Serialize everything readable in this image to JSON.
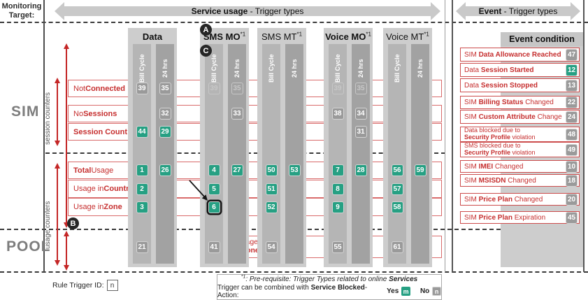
{
  "header": {
    "monitoring_target_line1": "Monitoring",
    "monitoring_target_line2": "Target:",
    "service_usage_bold": "Service usage",
    "service_usage_rest": " - Trigger types",
    "event_bold": "Event",
    "event_rest": " - Trigger types"
  },
  "sections": {
    "sim": "SIM",
    "pool": "POOL",
    "session_counters": "session counters",
    "usage_counters": "usage counters"
  },
  "markers": {
    "a": "A",
    "b": "B",
    "c": "C"
  },
  "colors": {
    "accent_red": "#c62f2f",
    "badge_green": "#26a083",
    "badge_gray": "#9a9a9a"
  },
  "matrix": {
    "columns": [
      {
        "id": "data",
        "label": "Data",
        "bold": true,
        "sup": "",
        "subcolumns": [
          "Bill Cycle",
          "24 hrs"
        ]
      },
      {
        "id": "sms_mo",
        "label": "SMS MO",
        "bold": true,
        "sup": "*1",
        "subcolumns": [
          "Bill Cycle",
          "24 hrs"
        ]
      },
      {
        "id": "sms_mt",
        "label": "SMS MT",
        "bold": false,
        "sup": "*1",
        "subcolumns": [
          "Bill Cycle",
          "24 hrs"
        ]
      },
      {
        "id": "voice_mo",
        "label": "Voice MO",
        "bold": true,
        "sup": "*1",
        "subcolumns": [
          "Bill Cycle",
          "24 hrs"
        ]
      },
      {
        "id": "voice_mt",
        "label": "Voice MT",
        "bold": false,
        "sup": "*1",
        "subcolumns": [
          "Bill Cycle",
          "24 hrs"
        ]
      }
    ],
    "rows": [
      {
        "id": "not_connected",
        "parts": [
          {
            "t": "Not "
          },
          {
            "t": "Connected",
            "b": true
          }
        ]
      },
      {
        "id": "no_sessions",
        "parts": [
          {
            "t": "No "
          },
          {
            "t": "Sessions",
            "b": true
          }
        ]
      },
      {
        "id": "session_count",
        "parts": [
          {
            "t": "Session Count",
            "b": true
          }
        ]
      },
      {
        "id": "total_usage",
        "parts": [
          {
            "t": "Total",
            "b": true
          },
          {
            "t": " Usage"
          }
        ]
      },
      {
        "id": "usage_country",
        "parts": [
          {
            "t": "Usage in "
          },
          {
            "t": "Country",
            "b": true
          }
        ]
      },
      {
        "id": "usage_zone",
        "parts": [
          {
            "t": "Usage in "
          },
          {
            "t": "Zone",
            "b": true
          }
        ]
      },
      {
        "id": "pool",
        "lines": [
          [
            {
              "t": "Pool",
              "b": true
            },
            {
              "t": " Usage"
            }
          ],
          [
            {
              "t": "Home-Zone",
              "b": true
            }
          ]
        ]
      }
    ],
    "badges": [
      {
        "row": "not_connected",
        "col": "data",
        "sub": "bc",
        "value": "39",
        "style": "gray"
      },
      {
        "row": "not_connected",
        "col": "data",
        "sub": "h24",
        "value": "35",
        "style": "gray"
      },
      {
        "row": "not_connected",
        "col": "sms_mo",
        "sub": "bc",
        "value": "39",
        "style": "ghost"
      },
      {
        "row": "not_connected",
        "col": "sms_mo",
        "sub": "h24",
        "value": "35",
        "style": "ghost"
      },
      {
        "row": "not_connected",
        "col": "voice_mo",
        "sub": "bc",
        "value": "39",
        "style": "ghost"
      },
      {
        "row": "not_connected",
        "col": "voice_mo",
        "sub": "h24",
        "value": "35",
        "style": "ghost"
      },
      {
        "row": "no_sessions",
        "col": "data",
        "sub": "h24",
        "value": "32",
        "style": "gray"
      },
      {
        "row": "no_sessions",
        "col": "sms_mo",
        "sub": "h24",
        "value": "33",
        "style": "gray"
      },
      {
        "row": "no_sessions",
        "col": "voice_mo",
        "sub": "bc",
        "value": "38",
        "style": "gray"
      },
      {
        "row": "no_sessions",
        "col": "voice_mo",
        "sub": "h24",
        "value": "34",
        "style": "gray"
      },
      {
        "row": "session_count",
        "col": "data",
        "sub": "bc",
        "value": "44",
        "style": "green"
      },
      {
        "row": "session_count",
        "col": "data",
        "sub": "h24",
        "value": "29",
        "style": "green"
      },
      {
        "row": "session_count",
        "col": "voice_mo",
        "sub": "h24",
        "value": "31",
        "style": "gray"
      },
      {
        "row": "total_usage",
        "col": "data",
        "sub": "bc",
        "value": "1",
        "style": "green"
      },
      {
        "row": "total_usage",
        "col": "data",
        "sub": "h24",
        "value": "26",
        "style": "green"
      },
      {
        "row": "total_usage",
        "col": "sms_mo",
        "sub": "bc",
        "value": "4",
        "style": "green"
      },
      {
        "row": "total_usage",
        "col": "sms_mo",
        "sub": "h24",
        "value": "27",
        "style": "green"
      },
      {
        "row": "total_usage",
        "col": "sms_mt",
        "sub": "bc",
        "value": "50",
        "style": "green"
      },
      {
        "row": "total_usage",
        "col": "sms_mt",
        "sub": "h24",
        "value": "53",
        "style": "green"
      },
      {
        "row": "total_usage",
        "col": "voice_mo",
        "sub": "bc",
        "value": "7",
        "style": "green"
      },
      {
        "row": "total_usage",
        "col": "voice_mo",
        "sub": "h24",
        "value": "28",
        "style": "green"
      },
      {
        "row": "total_usage",
        "col": "voice_mt",
        "sub": "bc",
        "value": "56",
        "style": "green"
      },
      {
        "row": "total_usage",
        "col": "voice_mt",
        "sub": "h24",
        "value": "59",
        "style": "green"
      },
      {
        "row": "usage_country",
        "col": "data",
        "sub": "bc",
        "value": "2",
        "style": "green"
      },
      {
        "row": "usage_country",
        "col": "sms_mo",
        "sub": "bc",
        "value": "5",
        "style": "green"
      },
      {
        "row": "usage_country",
        "col": "sms_mt",
        "sub": "bc",
        "value": "51",
        "style": "green"
      },
      {
        "row": "usage_country",
        "col": "voice_mo",
        "sub": "bc",
        "value": "8",
        "style": "green"
      },
      {
        "row": "usage_country",
        "col": "voice_mt",
        "sub": "bc",
        "value": "57",
        "style": "green"
      },
      {
        "row": "usage_zone",
        "col": "data",
        "sub": "bc",
        "value": "3",
        "style": "green"
      },
      {
        "row": "usage_zone",
        "col": "sms_mo",
        "sub": "bc",
        "value": "6",
        "style": "green",
        "highlight": true
      },
      {
        "row": "usage_zone",
        "col": "sms_mt",
        "sub": "bc",
        "value": "52",
        "style": "green"
      },
      {
        "row": "usage_zone",
        "col": "voice_mo",
        "sub": "bc",
        "value": "9",
        "style": "green"
      },
      {
        "row": "usage_zone",
        "col": "voice_mt",
        "sub": "bc",
        "value": "58",
        "style": "green"
      },
      {
        "row": "pool",
        "col": "data",
        "sub": "bc",
        "value": "21",
        "style": "gray"
      },
      {
        "row": "pool",
        "col": "sms_mo",
        "sub": "bc",
        "value": "41",
        "style": "gray"
      },
      {
        "row": "pool",
        "col": "sms_mt",
        "sub": "bc",
        "value": "54",
        "style": "gray"
      },
      {
        "row": "pool",
        "col": "voice_mo",
        "sub": "bc",
        "value": "55",
        "style": "gray"
      },
      {
        "row": "pool",
        "col": "voice_mt",
        "sub": "bc",
        "value": "61",
        "style": "gray"
      }
    ]
  },
  "events": {
    "title": "Event condition",
    "items": [
      {
        "id": "data-allowance-reached",
        "parts": [
          {
            "t": "SIM "
          },
          {
            "t": "Data Allowance Reached",
            "b": true
          }
        ],
        "value": "47",
        "style": "gray"
      },
      {
        "id": "data-session-started",
        "parts": [
          {
            "t": "Data "
          },
          {
            "t": "Session Started",
            "b": true
          }
        ],
        "value": "12",
        "style": "green"
      },
      {
        "id": "data-session-stopped",
        "parts": [
          {
            "t": "Data "
          },
          {
            "t": "Session Stopped",
            "b": true
          }
        ],
        "value": "13",
        "style": "gray"
      },
      {
        "id": "billing-status-changed",
        "parts": [
          {
            "t": "SIM "
          },
          {
            "t": "Billing Status",
            "b": true
          },
          {
            "t": " Changed"
          }
        ],
        "value": "22",
        "style": "gray"
      },
      {
        "id": "custom-attribute-change",
        "parts": [
          {
            "t": "SIM "
          },
          {
            "t": "Custom Attribute",
            "b": true
          },
          {
            "t": " Change"
          }
        ],
        "value": "24",
        "style": "gray"
      },
      {
        "id": "data-blocked-security",
        "lines": [
          [
            {
              "t": "Data blocked due to"
            }
          ],
          [
            {
              "t": "Security Profile",
              "b": true
            },
            {
              "t": " violation"
            }
          ]
        ],
        "value": "48",
        "style": "gray"
      },
      {
        "id": "sms-blocked-security",
        "lines": [
          [
            {
              "t": "SMS blocked due to"
            }
          ],
          [
            {
              "t": "Security Profile",
              "b": true
            },
            {
              "t": " violation"
            }
          ]
        ],
        "value": "49",
        "style": "gray"
      },
      {
        "id": "imei-changed",
        "parts": [
          {
            "t": "SIM "
          },
          {
            "t": "IMEI",
            "b": true
          },
          {
            "t": " Changed"
          }
        ],
        "value": "10",
        "style": "gray"
      },
      {
        "id": "msisdn-changed",
        "parts": [
          {
            "t": "SIM "
          },
          {
            "t": "MSISDN",
            "b": true
          },
          {
            "t": " Changed"
          }
        ],
        "value": "18",
        "style": "gray"
      },
      {
        "id": "price-plan-changed",
        "parts": [
          {
            "t": "SIM "
          },
          {
            "t": "Price Plan",
            "b": true
          },
          {
            "t": " Changed"
          }
        ],
        "value": "20",
        "style": "gray"
      },
      {
        "id": "price-plan-expiration",
        "parts": [
          {
            "t": "SIM "
          },
          {
            "t": "Price Plan",
            "b": true
          },
          {
            "t": " Expiration"
          }
        ],
        "value": "45",
        "style": "gray"
      }
    ]
  },
  "legend": {
    "rule_trigger_label": "Rule Trigger ID:",
    "rule_trigger_value": "n",
    "note_line1": [
      {
        "t": "*1",
        "i": true,
        "sup": true
      },
      {
        "t": ": Pre-requisite: Trigger Types related to online ",
        "i": true
      },
      {
        "t": "Services",
        "i": true,
        "b": true
      }
    ],
    "note_line2_prefix": [
      {
        "t": "Trigger can be combined with "
      },
      {
        "t": "Service Blocked",
        "b": true
      },
      {
        "t": "-Action: "
      }
    ],
    "yes_label": "Yes",
    "yes_badge": "m",
    "no_label": "No",
    "no_badge": "n"
  }
}
